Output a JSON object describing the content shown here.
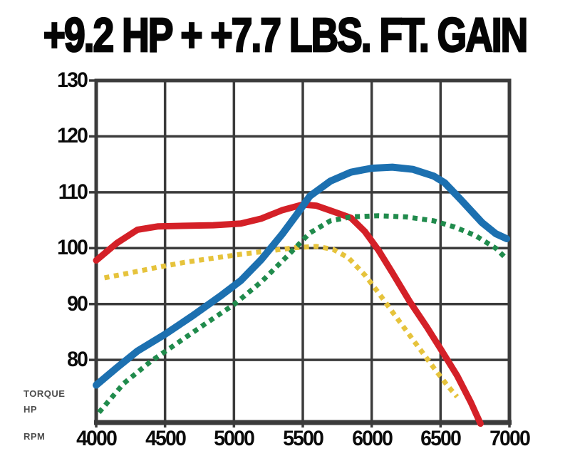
{
  "title": "+9.2 HP + +7.7 LBS. FT. GAIN",
  "axis_labels": {
    "torque": "TORQUE",
    "hp": "HP",
    "rpm": "RPM"
  },
  "colors": {
    "background": "#ffffff",
    "title_text": "#050505",
    "grid": "#3b3b3b",
    "hp_after_blue": "#1c70b0",
    "hp_before_green": "#208b4c",
    "torque_after_red": "#d42027",
    "torque_before_yellow": "#e6c33c"
  },
  "chart_data": {
    "type": "line",
    "title": "+9.2 HP + +7.7 LBS. FT. GAIN",
    "xlabel": "RPM",
    "ylabel": "TORQUE / HP",
    "grid": true,
    "legend_position": "none",
    "xlim": [
      4000,
      7000
    ],
    "ylim": [
      68.8,
      130
    ],
    "x_ticks": [
      4000,
      4500,
      5000,
      5500,
      6000,
      6500,
      7000
    ],
    "y_ticks": [
      80,
      90,
      100,
      110,
      120,
      130
    ],
    "series": [
      {
        "name": "torque_before",
        "color": "#e6c33c",
        "style": "dotted",
        "stroke_width": 7,
        "points": [
          [
            4060,
            94.7
          ],
          [
            4250,
            95.6
          ],
          [
            4450,
            96.6
          ],
          [
            4650,
            97.5
          ],
          [
            4850,
            98.2
          ],
          [
            5050,
            98.9
          ],
          [
            5250,
            99.5
          ],
          [
            5450,
            100.1
          ],
          [
            5600,
            100.3
          ],
          [
            5720,
            99.8
          ],
          [
            5830,
            98.3
          ],
          [
            5950,
            95.2
          ],
          [
            6050,
            92.0
          ],
          [
            6150,
            88.6
          ],
          [
            6300,
            83.6
          ],
          [
            6450,
            78.6
          ],
          [
            6550,
            75.4
          ],
          [
            6620,
            73.4
          ]
        ]
      },
      {
        "name": "torque_after",
        "color": "#d42027",
        "style": "solid",
        "stroke_width": 9,
        "points": [
          [
            4000,
            97.8
          ],
          [
            4150,
            100.9
          ],
          [
            4300,
            103.3
          ],
          [
            4450,
            103.9
          ],
          [
            4650,
            104.0
          ],
          [
            4850,
            104.1
          ],
          [
            5050,
            104.4
          ],
          [
            5200,
            105.3
          ],
          [
            5350,
            106.8
          ],
          [
            5500,
            107.8
          ],
          [
            5600,
            107.6
          ],
          [
            5750,
            106.3
          ],
          [
            5850,
            105.4
          ],
          [
            5950,
            103.0
          ],
          [
            6050,
            99.6
          ],
          [
            6150,
            95.6
          ],
          [
            6280,
            90.3
          ],
          [
            6400,
            85.9
          ],
          [
            6500,
            82.0
          ],
          [
            6620,
            77.2
          ],
          [
            6720,
            72.4
          ],
          [
            6790,
            68.6
          ]
        ]
      },
      {
        "name": "hp_after",
        "color": "#1c70b0",
        "style": "solid",
        "stroke_width": 10,
        "points": [
          [
            4000,
            75.5
          ],
          [
            4150,
            78.6
          ],
          [
            4300,
            81.6
          ],
          [
            4500,
            84.6
          ],
          [
            4700,
            87.9
          ],
          [
            4900,
            91.4
          ],
          [
            5050,
            94.2
          ],
          [
            5200,
            98.0
          ],
          [
            5350,
            102.5
          ],
          [
            5450,
            105.8
          ],
          [
            5550,
            109.3
          ],
          [
            5700,
            112.0
          ],
          [
            5850,
            113.6
          ],
          [
            6000,
            114.3
          ],
          [
            6150,
            114.5
          ],
          [
            6300,
            114.1
          ],
          [
            6450,
            112.9
          ],
          [
            6530,
            111.7
          ],
          [
            6650,
            108.6
          ],
          [
            6800,
            104.6
          ],
          [
            6900,
            102.6
          ],
          [
            6980,
            101.7
          ]
        ]
      },
      {
        "name": "hp_before",
        "color": "#208b4c",
        "style": "dotted",
        "stroke_width": 7,
        "points": [
          [
            4020,
            70.6
          ],
          [
            4200,
            75.8
          ],
          [
            4400,
            79.8
          ],
          [
            4600,
            83.2
          ],
          [
            4800,
            86.6
          ],
          [
            5000,
            89.9
          ],
          [
            5200,
            94.0
          ],
          [
            5400,
            98.9
          ],
          [
            5550,
            102.7
          ],
          [
            5700,
            104.9
          ],
          [
            5850,
            105.6
          ],
          [
            6050,
            105.8
          ],
          [
            6250,
            105.6
          ],
          [
            6450,
            104.9
          ],
          [
            6600,
            103.8
          ],
          [
            6750,
            102.3
          ],
          [
            6900,
            100.0
          ],
          [
            6970,
            98.3
          ]
        ]
      }
    ]
  }
}
